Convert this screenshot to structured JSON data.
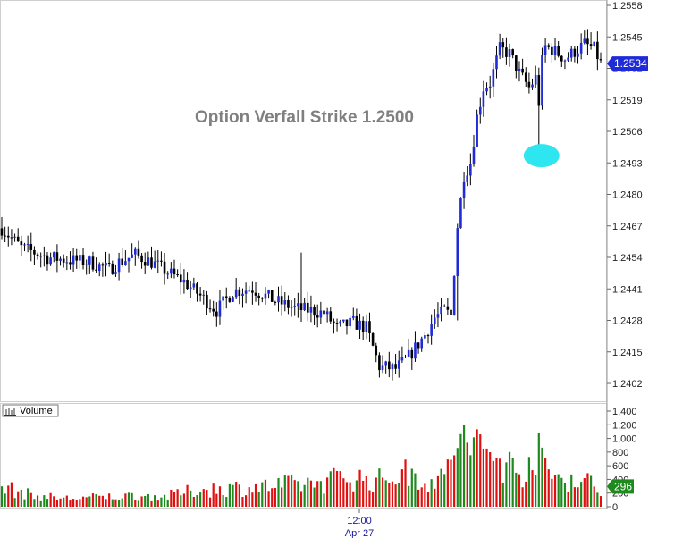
{
  "chart_data": [
    {
      "type": "candlestick",
      "annotation": "Option Verfall Strike 1.2500",
      "y_ticks": [
        "1.2558",
        "1.2545",
        "1.2532",
        "1.2519",
        "1.2506",
        "1.2493",
        "1.2480",
        "1.2467",
        "1.2454",
        "1.2441",
        "1.2428",
        "1.2415",
        "1.2402"
      ],
      "ylim": [
        1.2398,
        1.256
      ],
      "last_price": "1.2534",
      "last_price_color": "#1f2bd6",
      "up_color": "#1f2bd6",
      "down_color": "#000000",
      "highlight_color": "#2ee6f0",
      "highlight_price": 1.2496,
      "x_label": "12:00",
      "x_sublabel": "Apr 27",
      "anchors": [
        [
          0,
          1.2466
        ],
        [
          6,
          1.2458
        ],
        [
          14,
          1.2454
        ],
        [
          20,
          1.2453
        ],
        [
          27,
          1.2452
        ],
        [
          33,
          1.2449
        ],
        [
          36,
          1.2452
        ],
        [
          41,
          1.2455
        ],
        [
          46,
          1.2452
        ],
        [
          52,
          1.2447
        ],
        [
          56,
          1.2444
        ],
        [
          62,
          1.2437
        ],
        [
          66,
          1.2432
        ],
        [
          71,
          1.244
        ],
        [
          77,
          1.2441
        ],
        [
          84,
          1.2436
        ],
        [
          90,
          1.2433
        ],
        [
          95,
          1.2432
        ],
        [
          99,
          1.2431
        ],
        [
          103,
          1.2425
        ],
        [
          108,
          1.2427
        ],
        [
          112,
          1.2425
        ],
        [
          116,
          1.2409
        ],
        [
          121,
          1.2408
        ],
        [
          125,
          1.2413
        ],
        [
          130,
          1.2422
        ],
        [
          133,
          1.2429
        ],
        [
          136,
          1.2432
        ],
        [
          138,
          1.243
        ],
        [
          140,
          1.2467
        ],
        [
          142,
          1.2488
        ],
        [
          144,
          1.2493
        ],
        [
          146,
          1.2512
        ],
        [
          148,
          1.2524
        ],
        [
          150,
          1.2526
        ],
        [
          153,
          1.254
        ],
        [
          156,
          1.2538
        ],
        [
          159,
          1.253
        ],
        [
          162,
          1.2524
        ],
        [
          164,
          1.2528
        ],
        [
          165,
          1.2518
        ],
        [
          166,
          1.2535
        ],
        [
          167,
          1.2541
        ],
        [
          170,
          1.2539
        ],
        [
          173,
          1.2536
        ],
        [
          176,
          1.2539
        ],
        [
          179,
          1.2542
        ],
        [
          182,
          1.254
        ],
        [
          184,
          1.2534
        ]
      ]
    },
    {
      "type": "bar",
      "legend": "Volume",
      "y_ticks": [
        "1,400",
        "1,200",
        "1,000",
        "800",
        "600",
        "400",
        "200",
        "0"
      ],
      "ylim": [
        0,
        1500
      ],
      "last_volume": "296",
      "last_volume_color": "#1e8a1e",
      "up_color": "#1e8a1e",
      "down_color": "#e01010",
      "anchors": [
        [
          0,
          330
        ],
        [
          10,
          180
        ],
        [
          20,
          140
        ],
        [
          30,
          160
        ],
        [
          40,
          180
        ],
        [
          50,
          170
        ],
        [
          60,
          280
        ],
        [
          70,
          310
        ],
        [
          80,
          330
        ],
        [
          90,
          370
        ],
        [
          100,
          420
        ],
        [
          105,
          520
        ],
        [
          110,
          470
        ],
        [
          115,
          420
        ],
        [
          120,
          520
        ],
        [
          125,
          560
        ],
        [
          130,
          460
        ],
        [
          136,
          450
        ],
        [
          139,
          1100
        ],
        [
          145,
          1000
        ],
        [
          150,
          900
        ],
        [
          155,
          700
        ],
        [
          160,
          600
        ],
        [
          164,
          950
        ],
        [
          168,
          560
        ],
        [
          172,
          480
        ],
        [
          176,
          460
        ],
        [
          180,
          420
        ],
        [
          184,
          296
        ]
      ]
    }
  ]
}
